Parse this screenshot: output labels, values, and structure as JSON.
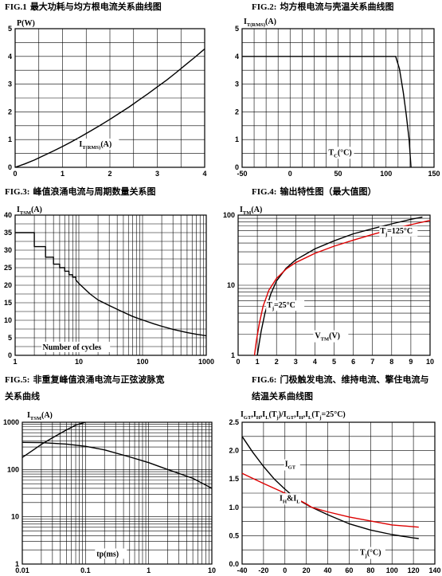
{
  "chart_data": [
    {
      "id": "fig1",
      "type": "line",
      "title_prefix": "FIG.1",
      "title_text": "最大功耗与均方根电流关系曲线图",
      "ylabel": "P(W)",
      "xlabel_main": "I",
      "xlabel_sub": "T(RMS)",
      "xlabel_tail": "(A)",
      "xlim": [
        0,
        4
      ],
      "ylim": [
        0,
        5
      ],
      "xticks": [
        0,
        1,
        2,
        3,
        4
      ],
      "yticks": [
        0,
        1,
        2,
        3,
        4,
        5
      ],
      "series": [
        {
          "color": "#000000",
          "x": [
            0,
            0.2,
            0.4,
            0.6,
            0.8,
            1.0,
            1.2,
            1.4,
            1.6,
            1.8,
            2.0,
            2.2,
            2.4,
            2.6,
            2.8,
            3.0,
            3.2,
            3.4,
            3.6,
            3.8,
            4.0
          ],
          "y": [
            0,
            0.12,
            0.26,
            0.42,
            0.58,
            0.75,
            0.93,
            1.12,
            1.32,
            1.52,
            1.73,
            1.95,
            2.17,
            2.41,
            2.65,
            2.9,
            3.15,
            3.42,
            3.7,
            3.98,
            4.27
          ]
        }
      ]
    },
    {
      "id": "fig2",
      "type": "line",
      "title_prefix": "FIG.2:",
      "title_text": "均方根电流与壳温关系曲线图",
      "ylabel_main": "I",
      "ylabel_sub": "T(RMS)",
      "ylabel_tail": "(A)",
      "xlabel_main": "T",
      "xlabel_sub": "C",
      "xlabel_tail": "(°C)",
      "xlim": [
        -50,
        150
      ],
      "ylim": [
        0,
        5
      ],
      "xticks": [
        -50,
        0,
        50,
        100,
        150
      ],
      "yticks": [
        0,
        1,
        2,
        3,
        4,
        5
      ],
      "series": [
        {
          "color": "#000000",
          "x": [
            -50,
            108,
            110,
            114,
            118,
            121,
            124,
            126
          ],
          "y": [
            4,
            4,
            4,
            3.55,
            2.7,
            1.9,
            1.0,
            0
          ]
        }
      ]
    },
    {
      "id": "fig3",
      "type": "line",
      "title_prefix": "FIG.3:",
      "title_text": "峰值浪涌电流与周期数量关系图",
      "ylabel_main": "I",
      "ylabel_sub": "TSM",
      "ylabel_tail": "(A)",
      "xlabel": "Number of cycles",
      "xscale": "log",
      "xlim": [
        1,
        1000
      ],
      "ylim": [
        0,
        40
      ],
      "xticks": [
        1,
        10,
        100,
        1000
      ],
      "yticks": [
        0,
        5,
        10,
        15,
        20,
        25,
        30,
        35,
        40
      ],
      "series": [
        {
          "color": "#000000",
          "x": [
            1,
            2,
            2,
            3,
            3,
            4,
            4,
            5,
            5,
            6,
            6,
            7,
            7,
            8,
            8,
            9,
            9,
            10,
            15,
            20,
            30,
            50,
            70,
            100,
            150,
            200,
            300,
            500,
            700,
            1000
          ],
          "y": [
            35,
            35,
            31,
            31,
            28,
            28,
            26,
            26,
            25,
            25,
            24,
            24,
            23,
            23,
            22.3,
            22.3,
            21.5,
            20.5,
            17.5,
            15.8,
            14.2,
            12.3,
            11.1,
            10.1,
            9.0,
            8.3,
            7.4,
            6.5,
            6.0,
            5.6
          ]
        }
      ]
    },
    {
      "id": "fig4",
      "type": "line",
      "title_prefix": "FIG.4:",
      "title_text": "输出特性图（最大值图）",
      "ylabel_main": "I",
      "ylabel_sub": "TM",
      "ylabel_tail": "(A)",
      "xlabel_main": "V",
      "xlabel_sub": "TM",
      "xlabel_tail": "(V)",
      "yscale": "log",
      "xlim": [
        0,
        10
      ],
      "ylim": [
        1,
        100
      ],
      "xticks": [
        0,
        1,
        2,
        3,
        4,
        5,
        6,
        7,
        8,
        9,
        10
      ],
      "yticks": [
        1,
        10,
        100
      ],
      "annotations": [
        {
          "main": "T",
          "sub": "j",
          "tail": "=125°C",
          "x": 7.4,
          "y": 55
        },
        {
          "main": "T",
          "sub": "j",
          "tail": "=25°C",
          "x": 1.5,
          "y": 4.8
        }
      ],
      "series": [
        {
          "name": "Tj=25°C",
          "color": "#000000",
          "x": [
            1.0,
            1.1,
            1.2,
            1.4,
            1.7,
            2.0,
            2.5,
            3.0,
            4.0,
            5.0,
            6.0,
            7.0,
            8.0,
            9.0,
            9.6
          ],
          "y": [
            1,
            1.5,
            2.2,
            4,
            7.5,
            11.5,
            17.5,
            23,
            33,
            43,
            54,
            64,
            75,
            87,
            94
          ]
        },
        {
          "name": "Tj=125°C",
          "color": "#dd0000",
          "x": [
            0.85,
            0.95,
            1.1,
            1.3,
            1.6,
            2.0,
            2.5,
            3.0,
            4.0,
            5.0,
            6.0,
            7.0,
            8.0,
            9.0,
            10.0
          ],
          "y": [
            1,
            1.6,
            2.8,
            5,
            8.5,
            12.5,
            17,
            21,
            28.5,
            36,
            44,
            53,
            63,
            73,
            84
          ]
        }
      ]
    },
    {
      "id": "fig5",
      "type": "line",
      "title_prefix": "FIG.5:",
      "title_text": "非重复峰值浪涌电流与正弦波脉宽",
      "title_line2": "关系曲线",
      "ylabel_main": "I",
      "ylabel_sub": "TSM",
      "ylabel_tail": "(A)",
      "xlabel": "tp(ms)",
      "xscale": "log",
      "yscale": "log",
      "xlim": [
        0.01,
        10
      ],
      "ylim": [
        1,
        1000
      ],
      "xticks": [
        0.01,
        0.1,
        1,
        10
      ],
      "xtick_labels": [
        "0.01",
        "0.1",
        "1",
        "10"
      ],
      "yticks": [
        1,
        10,
        100,
        1000
      ],
      "series": [
        {
          "color": "#000000",
          "x": [
            0.01,
            0.015,
            0.02,
            0.03,
            0.05,
            0.07,
            0.1
          ],
          "y": [
            180,
            260,
            340,
            470,
            690,
            870,
            1000
          ]
        },
        {
          "color": "#000000",
          "x": [
            0.01,
            0.02,
            0.05,
            0.1,
            0.2,
            0.5,
            1,
            2,
            5,
            10
          ],
          "y": [
            375,
            370,
            345,
            310,
            260,
            185,
            140,
            100,
            65,
            40
          ]
        }
      ]
    },
    {
      "id": "fig6",
      "type": "line",
      "title_prefix": "FIG.6:",
      "title_text": "门极触发电流、维持电流、擎住电流与",
      "title_line2": "结温关系曲线图",
      "ylabel_text": "I_GT,I_H,I_L(T_j)/I_GT,I_H,I_L(T_j=25°C)",
      "ylabel_parts": [
        [
          "I",
          false
        ],
        [
          "GT",
          true
        ],
        [
          ",I",
          false
        ],
        [
          "H",
          true
        ],
        [
          ",I",
          false
        ],
        [
          "L",
          true
        ],
        [
          "(T",
          false
        ],
        [
          "j",
          true
        ],
        [
          ")/I",
          false
        ],
        [
          "GT",
          true
        ],
        [
          ",I",
          false
        ],
        [
          "H",
          true
        ],
        [
          ",I",
          false
        ],
        [
          "L",
          true
        ],
        [
          "(T",
          false
        ],
        [
          "j",
          true
        ],
        [
          "=25°C)",
          false
        ]
      ],
      "xlabel_main": "T",
      "xlabel_sub": "j",
      "xlabel_tail": "(°C)",
      "xlim": [
        -40,
        140
      ],
      "ylim": [
        0,
        2.5
      ],
      "xticks": [
        -40,
        -20,
        0,
        20,
        40,
        60,
        80,
        100,
        120,
        140
      ],
      "yticks": [
        0,
        0.5,
        1.0,
        1.5,
        2.0,
        2.5
      ],
      "ytick_labels": [
        "0.0",
        "0.5",
        "1.0",
        "1.5",
        "2.0",
        "2.5"
      ],
      "series_labels": [
        {
          "main": "I",
          "sub": "GT",
          "tail": "",
          "x": 0,
          "y": 1.72
        },
        {
          "main": "I",
          "sub": "H",
          "tail": "&I",
          "sub2": "L",
          "x": -5,
          "y": 1.12
        }
      ],
      "series": [
        {
          "name": "IGT",
          "color": "#000000",
          "x": [
            -40,
            -30,
            -20,
            -10,
            0,
            10,
            20,
            25,
            40,
            60,
            80,
            100,
            120,
            125
          ],
          "y": [
            2.25,
            1.97,
            1.72,
            1.5,
            1.32,
            1.16,
            1.05,
            1.0,
            0.87,
            0.71,
            0.6,
            0.52,
            0.46,
            0.45
          ]
        },
        {
          "name": "IH&IL",
          "color": "#dd0000",
          "x": [
            -40,
            -20,
            0,
            10,
            20,
            25,
            40,
            60,
            80,
            100,
            125
          ],
          "y": [
            1.6,
            1.42,
            1.25,
            1.16,
            1.06,
            1.0,
            0.92,
            0.83,
            0.76,
            0.69,
            0.65
          ]
        }
      ]
    }
  ]
}
